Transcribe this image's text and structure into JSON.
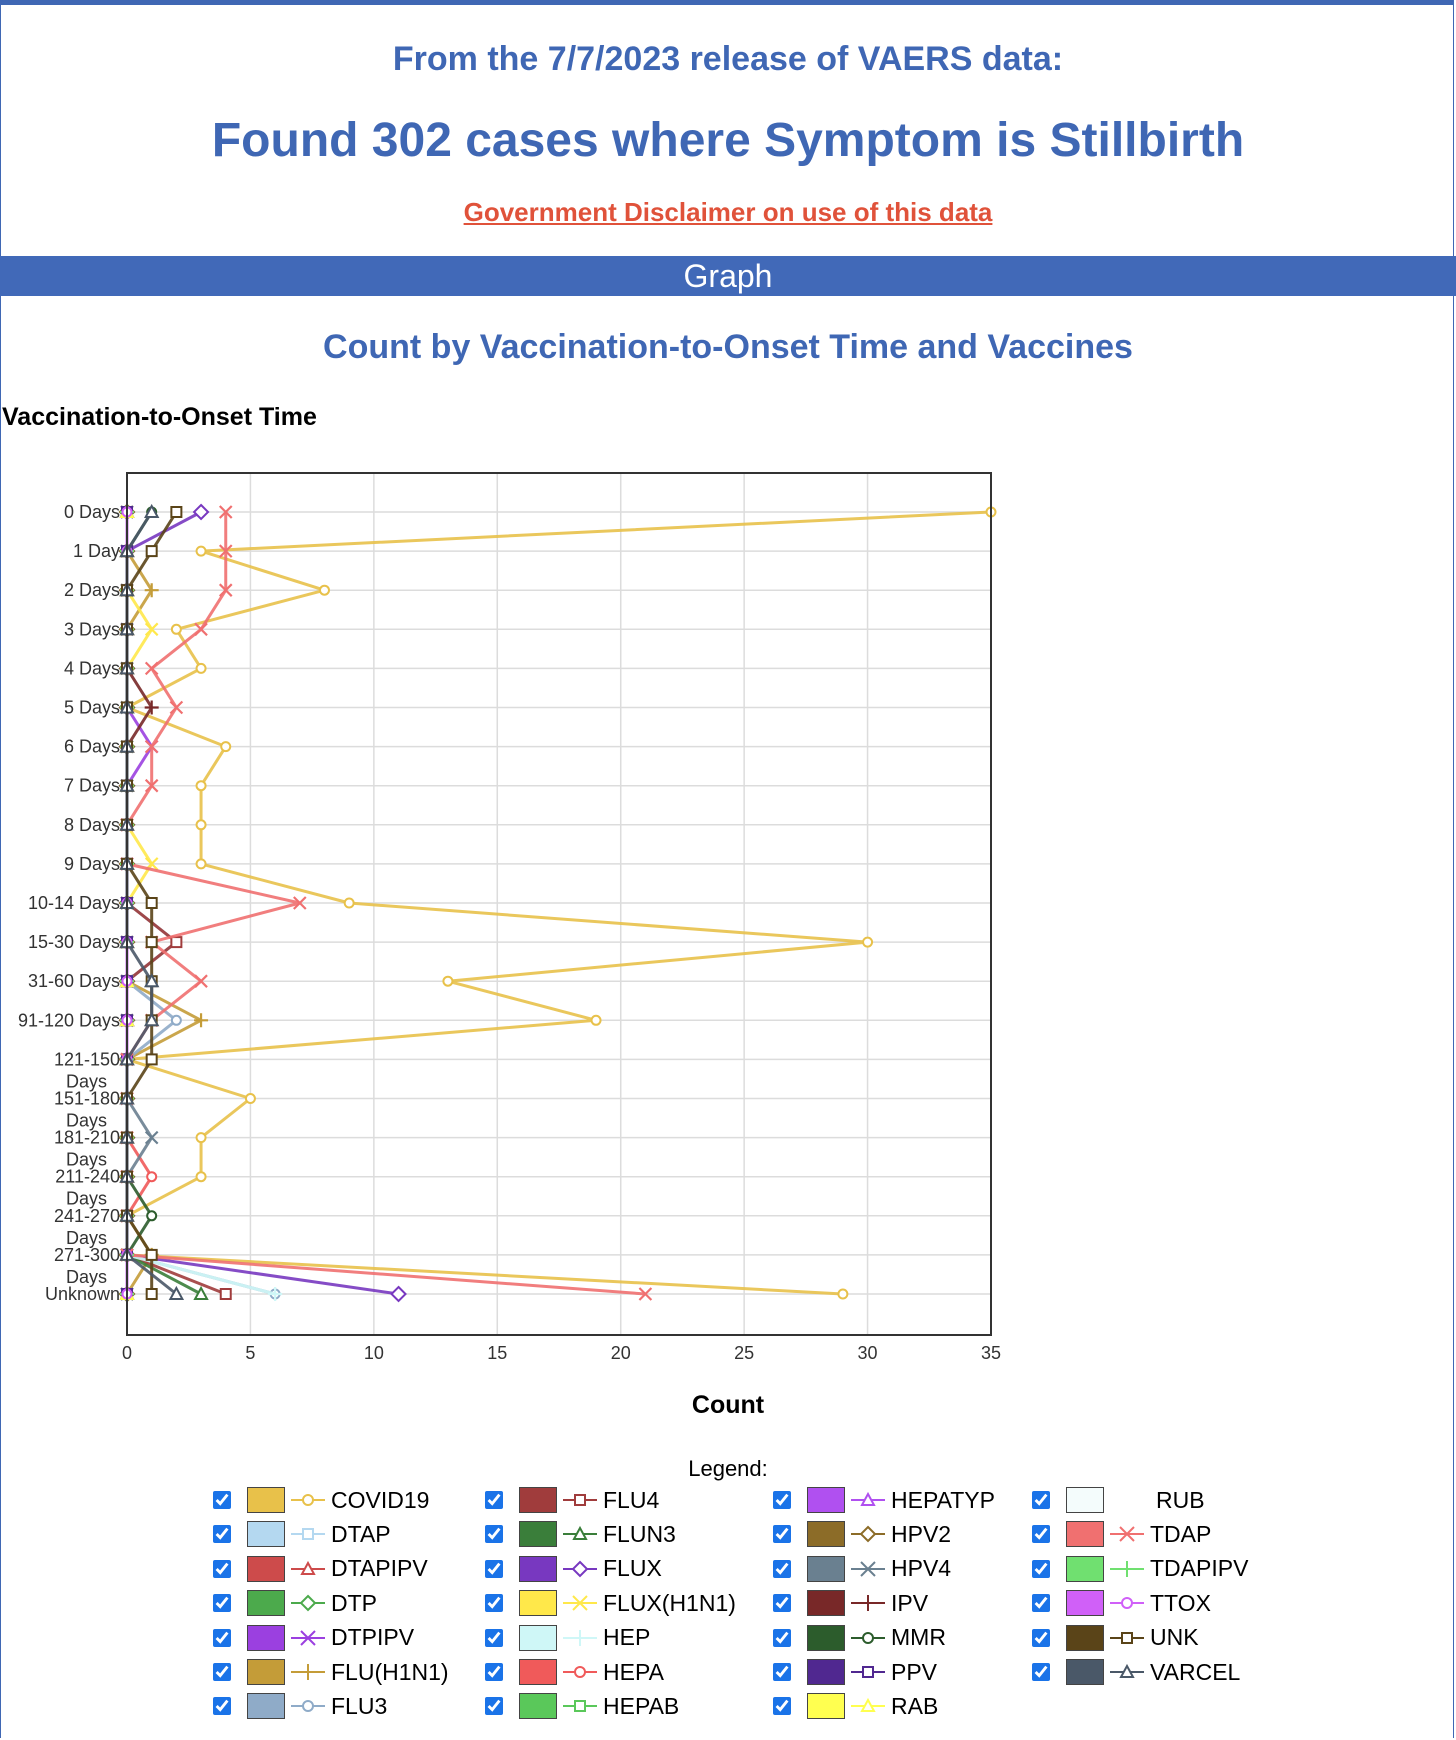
{
  "header": {
    "release": "From the 7/7/2023 release of VAERS data:",
    "found": "Found 302 cases where Symptom is Stillbirth",
    "disclaimer": "Government Disclaimer on use of this data",
    "graph_bar": "Graph"
  },
  "legend_title": "Legend:",
  "chart_data": {
    "type": "line",
    "title": "Count by Vaccination-to-Onset Time and Vaccines",
    "ylabel": "Vaccination-to-Onset Time",
    "xlabel": "Count",
    "xlim": [
      0,
      35
    ],
    "xticks": [
      0,
      5,
      10,
      15,
      20,
      25,
      30,
      35
    ],
    "grid": true,
    "categories": [
      "0 Days",
      "1 Day",
      "2 Days",
      "3 Days",
      "4 Days",
      "5 Days",
      "6 Days",
      "7 Days",
      "8 Days",
      "9 Days",
      "10-14 Days",
      "15-30 Days",
      "31-60 Days",
      "91-120 Days",
      "121-150 Days",
      "151-180 Days",
      "181-210 Days",
      "211-240 Days",
      "241-270 Days",
      "271-300 Days",
      "Unknown"
    ],
    "series": [
      {
        "name": "COVID19",
        "color": "#e8c14a",
        "marker": "circle",
        "values": [
          35,
          3,
          8,
          2,
          3,
          0,
          4,
          3,
          3,
          3,
          9,
          30,
          13,
          19,
          0,
          5,
          3,
          3,
          0,
          0,
          29
        ]
      },
      {
        "name": "DTAP",
        "color": "#b4d8f0",
        "marker": "square",
        "values": [
          0,
          0,
          0,
          0,
          0,
          0,
          0,
          0,
          0,
          0,
          0,
          0,
          0,
          0,
          0,
          0,
          0,
          0,
          0,
          0,
          0
        ]
      },
      {
        "name": "DTAPIPV",
        "color": "#cd4b4b",
        "marker": "triangle",
        "values": [
          0,
          0,
          0,
          0,
          0,
          0,
          0,
          0,
          0,
          0,
          0,
          0,
          0,
          0,
          0,
          0,
          0,
          0,
          0,
          0,
          0
        ]
      },
      {
        "name": "DTP",
        "color": "#4caa4c",
        "marker": "diamond",
        "values": [
          0,
          0,
          0,
          0,
          0,
          0,
          0,
          0,
          0,
          0,
          0,
          0,
          0,
          0,
          0,
          0,
          0,
          0,
          0,
          0,
          0
        ]
      },
      {
        "name": "DTPIPV",
        "color": "#9b40e0",
        "marker": "x",
        "values": [
          0,
          0,
          0,
          0,
          0,
          0,
          1,
          0,
          0,
          0,
          0,
          0,
          0,
          0,
          0,
          0,
          0,
          0,
          0,
          0,
          0
        ]
      },
      {
        "name": "FLU(H1N1)",
        "color": "#c49c38",
        "marker": "plus",
        "values": [
          0,
          0,
          1,
          0,
          0,
          0,
          0,
          0,
          0,
          0,
          0,
          0,
          0,
          3,
          0,
          0,
          0,
          0,
          0,
          1,
          0
        ]
      },
      {
        "name": "FLU3",
        "color": "#8fabc8",
        "marker": "circle",
        "values": [
          0,
          0,
          0,
          0,
          0,
          0,
          0,
          0,
          0,
          0,
          0,
          2,
          0,
          2,
          0,
          0,
          0,
          0,
          0,
          0,
          6
        ]
      },
      {
        "name": "FLU4",
        "color": "#a03c3c",
        "marker": "square",
        "values": [
          0,
          0,
          0,
          0,
          0,
          0,
          0,
          0,
          0,
          0,
          0,
          2,
          0,
          0,
          0,
          0,
          0,
          0,
          0,
          0,
          4
        ]
      },
      {
        "name": "FLUN3",
        "color": "#3a7e3a",
        "marker": "triangle",
        "values": [
          0,
          0,
          0,
          0,
          0,
          0,
          0,
          0,
          0,
          0,
          0,
          0,
          0,
          0,
          0,
          0,
          0,
          0,
          0,
          0,
          3
        ]
      },
      {
        "name": "FLUX",
        "color": "#7838c0",
        "marker": "diamond",
        "values": [
          3,
          0,
          0,
          0,
          0,
          0,
          0,
          0,
          0,
          0,
          0,
          0,
          0,
          0,
          0,
          0,
          0,
          0,
          0,
          0,
          11
        ]
      },
      {
        "name": "FLUX(H1N1)",
        "color": "#ffe84a",
        "marker": "x",
        "values": [
          0,
          0,
          0,
          1,
          0,
          0,
          0,
          0,
          0,
          1,
          0,
          0,
          0,
          0,
          0,
          0,
          0,
          0,
          0,
          0,
          0
        ]
      },
      {
        "name": "HEP",
        "color": "#cff7f7",
        "marker": "plus",
        "values": [
          0,
          0,
          0,
          0,
          0,
          0,
          0,
          0,
          0,
          0,
          0,
          0,
          0,
          0,
          0,
          0,
          0,
          0,
          0,
          0,
          6
        ]
      },
      {
        "name": "HEPA",
        "color": "#f05a5a",
        "marker": "circle",
        "values": [
          0,
          0,
          0,
          0,
          0,
          0,
          0,
          0,
          0,
          0,
          0,
          0,
          0,
          0,
          0,
          0,
          0,
          1,
          0,
          0,
          0
        ]
      },
      {
        "name": "HEPAB",
        "color": "#5ac85a",
        "marker": "square",
        "values": [
          0,
          0,
          0,
          0,
          0,
          0,
          0,
          0,
          0,
          0,
          0,
          0,
          0,
          0,
          0,
          0,
          0,
          0,
          0,
          0,
          0
        ]
      },
      {
        "name": "HEPATYP",
        "color": "#b050f0",
        "marker": "triangle",
        "values": [
          0,
          0,
          0,
          0,
          0,
          0,
          0,
          0,
          0,
          0,
          0,
          0,
          0,
          0,
          0,
          0,
          0,
          0,
          0,
          0,
          0
        ]
      },
      {
        "name": "HPV2",
        "color": "#8c6c28",
        "marker": "diamond",
        "values": [
          0,
          0,
          0,
          0,
          0,
          0,
          0,
          0,
          0,
          0,
          0,
          0,
          0,
          0,
          0,
          0,
          0,
          0,
          0,
          0,
          0
        ]
      },
      {
        "name": "HPV4",
        "color": "#6a8090",
        "marker": "x",
        "values": [
          0,
          0,
          0,
          0,
          0,
          0,
          0,
          0,
          0,
          0,
          0,
          0,
          0,
          0,
          0,
          0,
          1,
          0,
          0,
          0,
          0
        ]
      },
      {
        "name": "IPV",
        "color": "#782828",
        "marker": "plus",
        "values": [
          0,
          0,
          0,
          0,
          0,
          1,
          0,
          0,
          0,
          0,
          0,
          0,
          0,
          0,
          0,
          0,
          0,
          0,
          0,
          0,
          0
        ]
      },
      {
        "name": "MMR",
        "color": "#2c5c2c",
        "marker": "circle",
        "values": [
          1,
          0,
          0,
          0,
          0,
          0,
          0,
          0,
          0,
          0,
          0,
          0,
          0,
          0,
          0,
          0,
          0,
          0,
          1,
          0,
          0
        ]
      },
      {
        "name": "PPV",
        "color": "#502890",
        "marker": "square",
        "values": [
          0,
          0,
          0,
          0,
          0,
          0,
          0,
          0,
          0,
          0,
          0,
          0,
          0,
          0,
          0,
          0,
          0,
          0,
          0,
          0,
          0
        ]
      },
      {
        "name": "RAB",
        "color": "#ffff50",
        "marker": "triangle",
        "values": [
          0,
          0,
          0,
          0,
          0,
          0,
          0,
          0,
          0,
          0,
          0,
          0,
          0,
          0,
          0,
          0,
          0,
          0,
          0,
          0,
          0
        ]
      },
      {
        "name": "RUB",
        "color": "#f4fcfc",
        "marker": "none",
        "values": [
          0,
          0,
          0,
          0,
          0,
          0,
          0,
          0,
          0,
          0,
          0,
          0,
          0,
          0,
          0,
          0,
          0,
          0,
          0,
          0,
          0
        ]
      },
      {
        "name": "TDAP",
        "color": "#f07070",
        "marker": "x",
        "values": [
          4,
          4,
          4,
          3,
          1,
          2,
          1,
          1,
          0,
          0,
          7,
          1,
          3,
          1,
          0,
          0,
          0,
          0,
          0,
          0,
          21
        ]
      },
      {
        "name": "TDAPIPV",
        "color": "#70e070",
        "marker": "plus",
        "values": [
          0,
          0,
          0,
          0,
          0,
          0,
          0,
          0,
          0,
          0,
          0,
          0,
          0,
          0,
          0,
          0,
          0,
          0,
          0,
          0,
          0
        ]
      },
      {
        "name": "TTOX",
        "color": "#d060f8",
        "marker": "circle",
        "values": [
          0,
          0,
          0,
          0,
          0,
          0,
          0,
          0,
          0,
          0,
          0,
          0,
          0,
          0,
          0,
          0,
          0,
          0,
          0,
          0,
          0
        ]
      },
      {
        "name": "UNK",
        "color": "#5a4418",
        "marker": "square",
        "values": [
          2,
          1,
          0,
          0,
          0,
          0,
          0,
          0,
          0,
          0,
          1,
          1,
          1,
          1,
          1,
          0,
          0,
          0,
          0,
          1,
          1
        ]
      },
      {
        "name": "VARCEL",
        "color": "#4a5868",
        "marker": "triangle",
        "values": [
          1,
          0,
          0,
          0,
          0,
          0,
          0,
          0,
          0,
          0,
          0,
          0,
          1,
          1,
          0,
          0,
          0,
          0,
          0,
          0,
          2
        ]
      }
    ]
  }
}
